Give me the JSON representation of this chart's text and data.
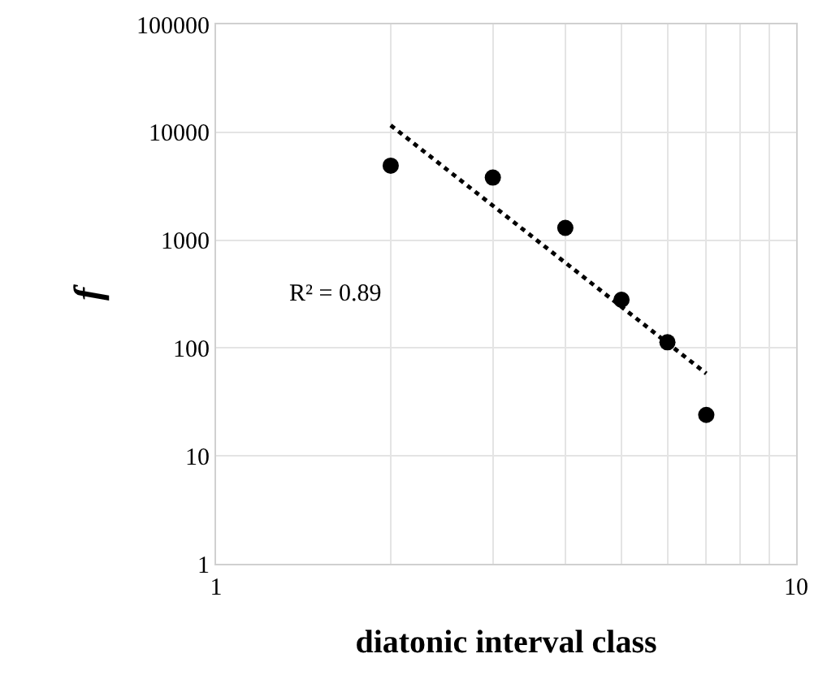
{
  "chart_data": {
    "type": "scatter",
    "xlabel": "diatonic interval class",
    "ylabel": "f",
    "log": "xy",
    "grid": true,
    "marker": "circle",
    "xlim": [
      1,
      10
    ],
    "xticks": [
      1,
      {
        "value": 2,
        "label": null
      },
      {
        "value": 3,
        "label": null
      },
      {
        "value": 4,
        "label": null
      },
      {
        "value": 5,
        "label": null
      },
      {
        "value": 6,
        "label": null
      },
      {
        "value": 7,
        "label": null
      },
      {
        "value": 8,
        "label": null
      },
      {
        "value": 9,
        "label": null
      },
      10
    ],
    "ylim": [
      1,
      100000
    ],
    "yticks": [
      1,
      10,
      100,
      1000,
      10000,
      100000
    ],
    "x": [
      2,
      3,
      4,
      5,
      6,
      7
    ],
    "series": [
      {
        "color": "#000000",
        "values": [
          4900,
          3800,
          1300,
          280,
          113,
          24
        ]
      },
      {
        "type": "line",
        "color": "#000000",
        "line_style": "dotted",
        "marker": "none",
        "x": [
          2,
          7
        ],
        "values": [
          11600,
          58
        ]
      }
    ],
    "annotations": [
      "R² = 0.89"
    ]
  }
}
